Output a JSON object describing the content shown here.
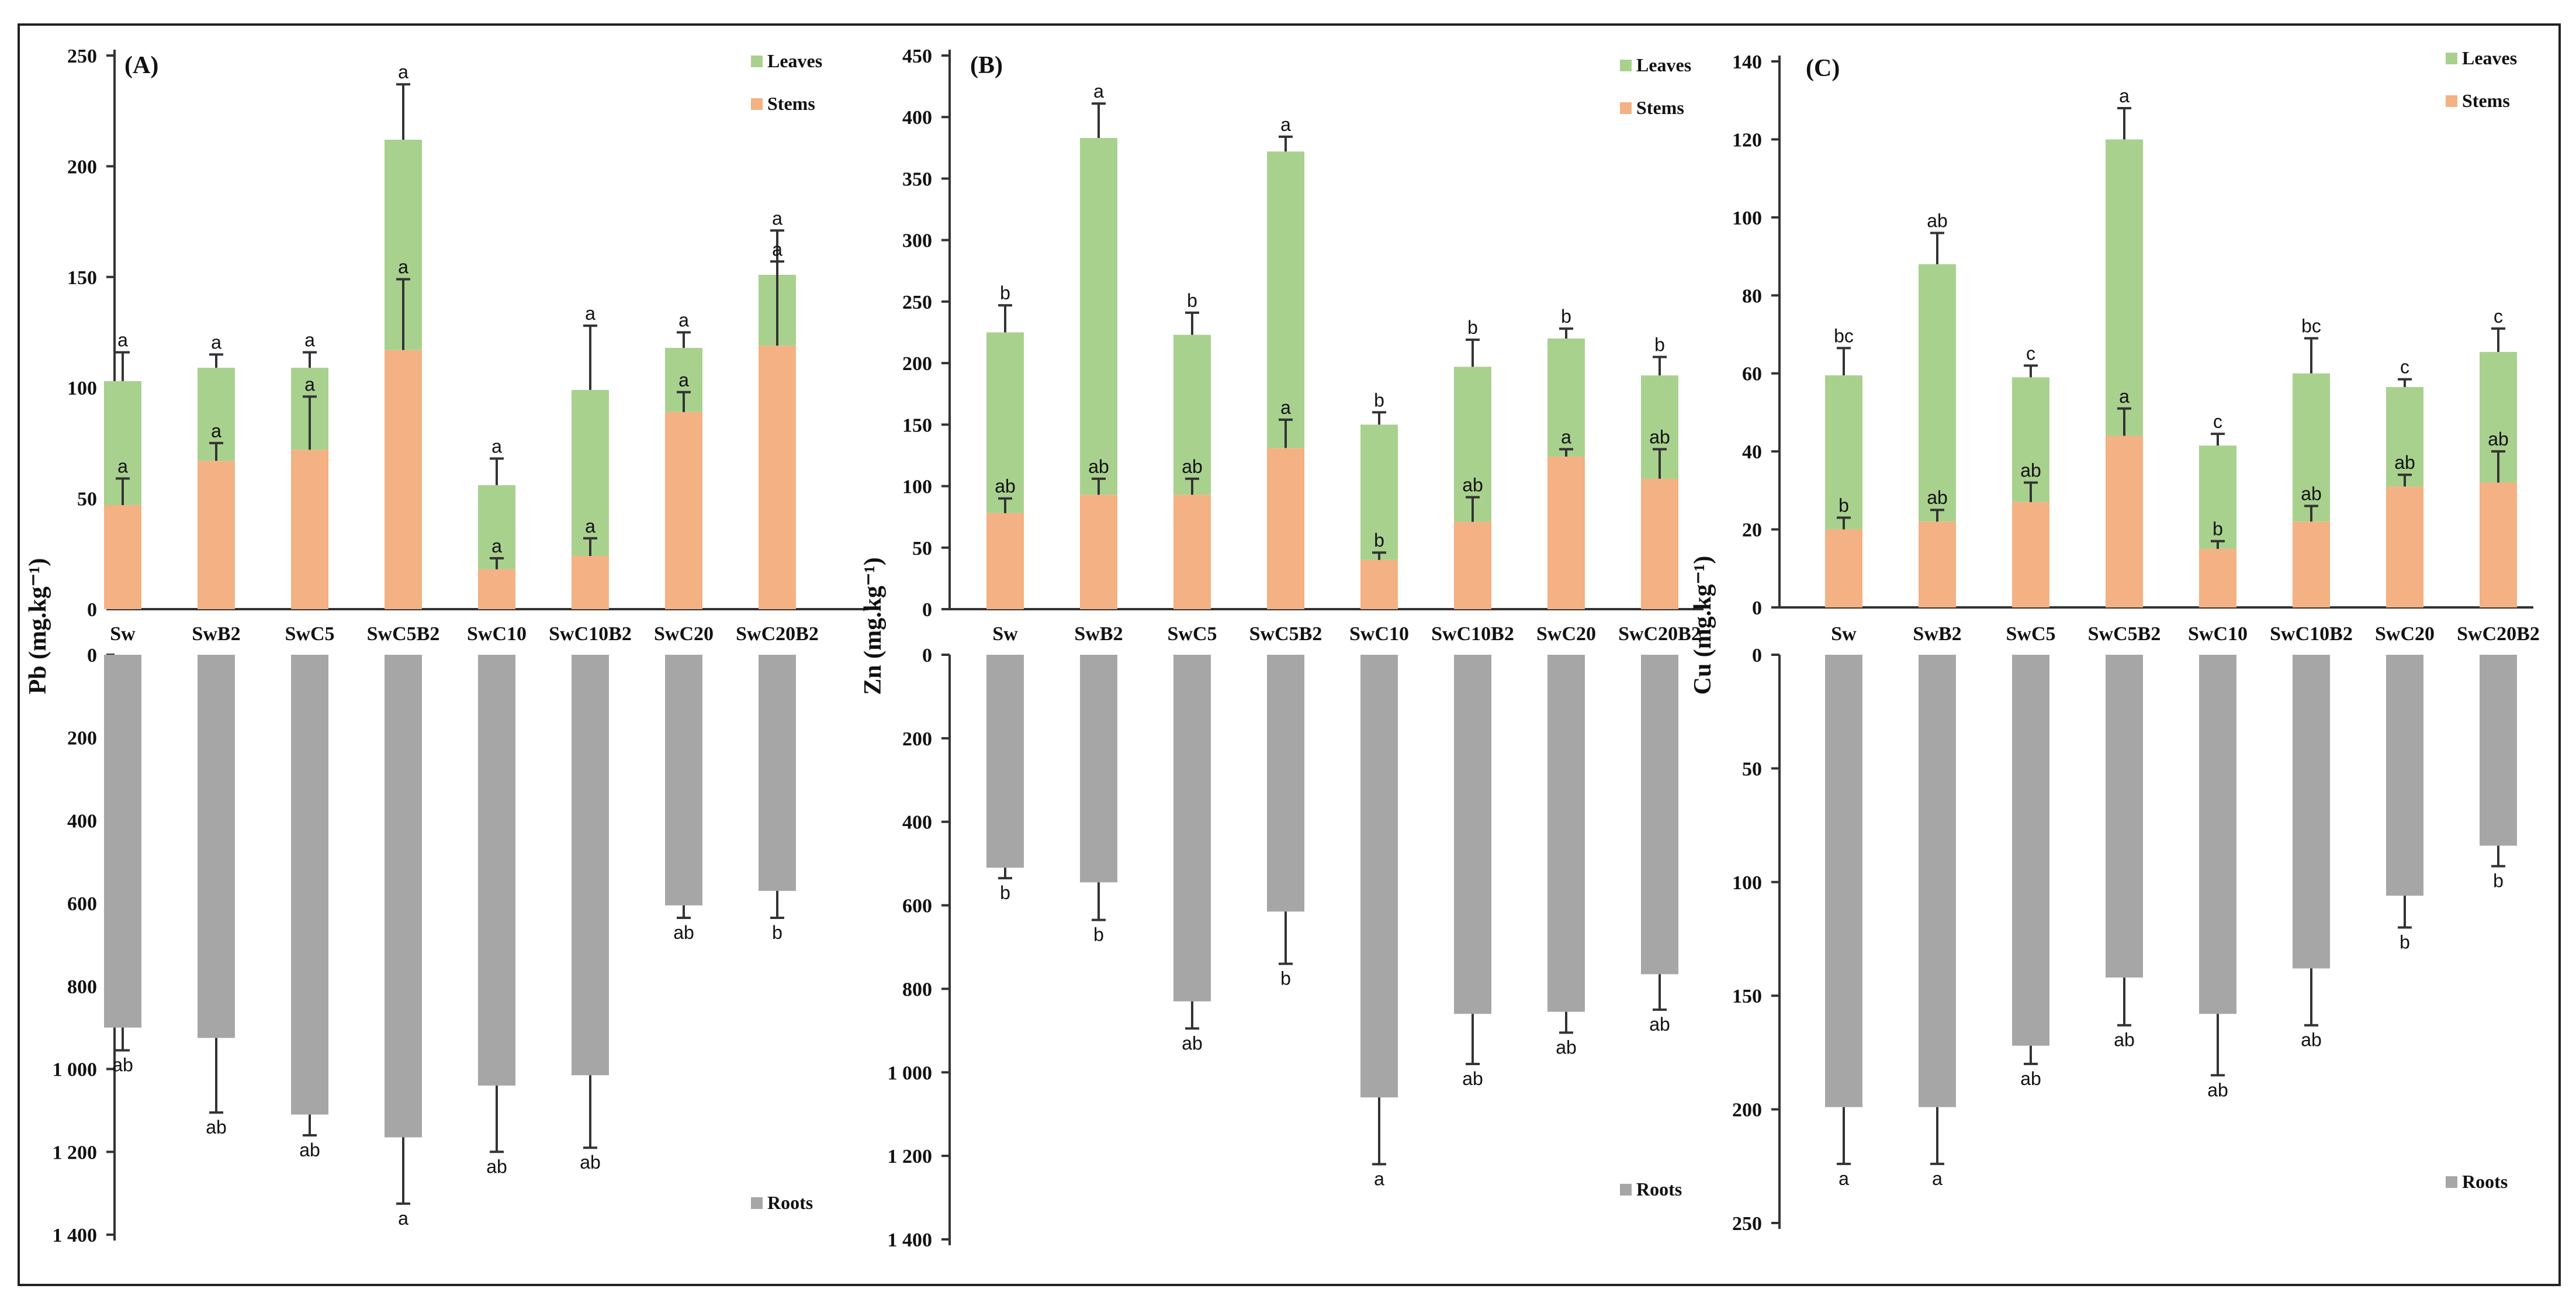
{
  "colors": {
    "leaves": "#a9d18e",
    "stems": "#f4b183",
    "roots": "#a6a6a6",
    "axis": "#333333",
    "error": "#333333"
  },
  "chart_data": [
    {
      "type": "bar",
      "panel": "(A)",
      "element": "Pb",
      "ylabel": "Pb (mg.kg⁻¹)",
      "categories": [
        "Sw",
        "SwB2",
        "SwC5",
        "SwC5B2",
        "SwC10",
        "SwC10B2",
        "SwC20",
        "SwC20B2"
      ],
      "legend": {
        "leaves": "Leaves",
        "stems": "Stems",
        "roots": "Roots"
      },
      "top": {
        "ylim": [
          0,
          250
        ],
        "ticks": [
          0,
          50,
          100,
          150,
          200,
          250
        ],
        "tick_labels": [
          "0",
          "50",
          "100",
          "150",
          "200",
          "250"
        ],
        "stems": [
          47,
          67,
          72,
          117,
          18,
          24,
          89,
          119
        ],
        "leaves": [
          56,
          42,
          37,
          95,
          38,
          75,
          29,
          32
        ],
        "stems_err": [
          12,
          8,
          24,
          32,
          5,
          8,
          9,
          38
        ],
        "total_err": [
          13,
          6,
          7,
          25,
          12,
          29,
          7,
          20
        ],
        "stems_sig": [
          "a",
          "a",
          "a",
          "a",
          "a",
          "a",
          "a",
          "a"
        ],
        "leaves_sig": [
          "a",
          "a",
          "a",
          "a",
          "a",
          "a",
          "a",
          "a"
        ]
      },
      "bottom": {
        "ylim": [
          0,
          1400
        ],
        "ticks": [
          0,
          200,
          400,
          600,
          800,
          1000,
          1200,
          1400
        ],
        "tick_labels": [
          "0",
          "200",
          "400",
          "600",
          "800",
          "1 000",
          "1 200",
          "1 400"
        ],
        "roots": [
          900,
          925,
          1110,
          1165,
          1040,
          1015,
          605,
          570
        ],
        "roots_err": [
          55,
          180,
          50,
          160,
          160,
          175,
          30,
          65
        ],
        "roots_sig": [
          "ab",
          "ab",
          "ab",
          "a",
          "ab",
          "ab",
          "ab",
          "b"
        ]
      }
    },
    {
      "type": "bar",
      "panel": "(B)",
      "element": "Zn",
      "ylabel": "Zn (mg.kg⁻¹)",
      "categories": [
        "Sw",
        "SwB2",
        "SwC5",
        "SwC5B2",
        "SwC10",
        "SwC10B2",
        "SwC20",
        "SwC20B2"
      ],
      "legend": {
        "leaves": "Leaves",
        "stems": "Stems",
        "roots": "Roots"
      },
      "top": {
        "ylim": [
          0,
          450
        ],
        "ticks": [
          0,
          50,
          100,
          150,
          200,
          250,
          300,
          350,
          400,
          450
        ],
        "tick_labels": [
          "0",
          "50",
          "100",
          "150",
          "200",
          "250",
          "300",
          "350",
          "400",
          "450"
        ],
        "stems": [
          78,
          93,
          93,
          131,
          40,
          71,
          124,
          106
        ],
        "leaves": [
          147,
          290,
          130,
          241,
          110,
          126,
          96,
          84
        ],
        "stems_err": [
          12,
          13,
          13,
          23,
          6,
          20,
          6,
          24
        ],
        "total_err": [
          22,
          28,
          18,
          12,
          10,
          22,
          8,
          15
        ],
        "stems_sig": [
          "ab",
          "ab",
          "ab",
          "a",
          "b",
          "ab",
          "a",
          "ab"
        ],
        "leaves_sig": [
          "b",
          "a",
          "b",
          "a",
          "b",
          "b",
          "b",
          "b"
        ]
      },
      "bottom": {
        "ylim": [
          0,
          1400
        ],
        "ticks": [
          0,
          200,
          400,
          600,
          800,
          1000,
          1200,
          1400
        ],
        "tick_labels": [
          "0",
          "200",
          "400",
          "600",
          "800",
          "1 000",
          "1 200",
          "1 400"
        ],
        "roots": [
          510,
          545,
          830,
          615,
          1060,
          860,
          855,
          765
        ],
        "roots_err": [
          25,
          90,
          65,
          125,
          160,
          120,
          50,
          85
        ],
        "roots_sig": [
          "b",
          "b",
          "ab",
          "b",
          "a",
          "ab",
          "ab",
          "ab"
        ]
      }
    },
    {
      "type": "bar",
      "panel": "(C)",
      "element": "Cu",
      "ylabel": "Cu (mg.kg⁻¹)",
      "categories": [
        "Sw",
        "SwB2",
        "SwC5",
        "SwC5B2",
        "SwC10",
        "SwC10B2",
        "SwC20",
        "SwC20B2"
      ],
      "legend": {
        "leaves": "Leaves",
        "stems": "Stems",
        "roots": "Roots"
      },
      "top": {
        "ylim": [
          0,
          140
        ],
        "ticks": [
          0,
          20,
          40,
          60,
          80,
          100,
          120,
          140
        ],
        "tick_labels": [
          "0",
          "20",
          "40",
          "60",
          "80",
          "100",
          "120",
          "140"
        ],
        "stems": [
          20,
          22,
          27,
          44,
          15,
          22,
          31,
          32
        ],
        "leaves": [
          39.5,
          66,
          32,
          76,
          26.5,
          38,
          25.5,
          33.5
        ],
        "stems_err": [
          3,
          3,
          5,
          7,
          2,
          4,
          3,
          8
        ],
        "total_err": [
          7,
          8,
          3,
          8,
          3,
          9,
          2,
          6
        ],
        "stems_sig": [
          "b",
          "ab",
          "ab",
          "a",
          "b",
          "ab",
          "ab",
          "ab"
        ],
        "leaves_sig": [
          "bc",
          "ab",
          "c",
          "a",
          "c",
          "bc",
          "c",
          "c"
        ]
      },
      "bottom": {
        "ylim": [
          0,
          250
        ],
        "ticks": [
          0,
          50,
          100,
          150,
          200,
          250
        ],
        "tick_labels": [
          "0",
          "50",
          "100",
          "150",
          "200",
          "250"
        ],
        "roots": [
          199,
          199,
          172,
          142,
          158,
          138,
          106,
          84
        ],
        "roots_err": [
          25,
          25,
          8,
          21,
          27,
          25,
          14,
          9
        ],
        "roots_sig": [
          "a",
          "a",
          "ab",
          "ab",
          "ab",
          "ab",
          "b",
          "b"
        ]
      }
    }
  ]
}
